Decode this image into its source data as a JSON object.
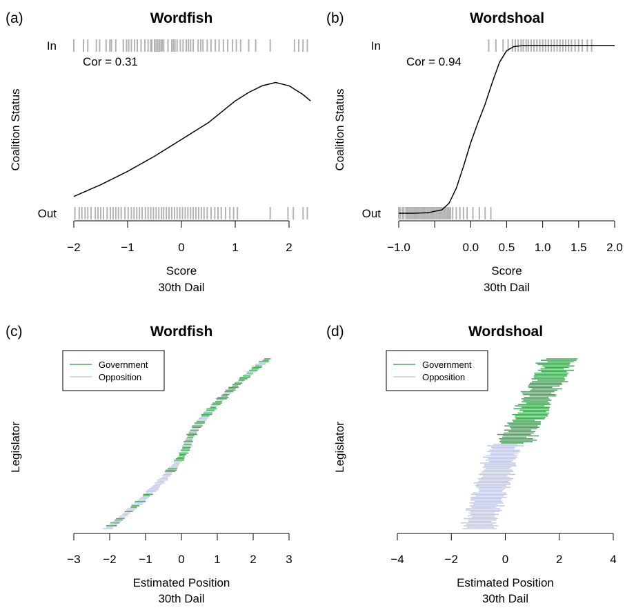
{
  "chart_data": [
    {
      "panel": "(a)",
      "type": "scatter",
      "title": "Wordfish",
      "xlabel": "Score",
      "xlabel_sub": "30th Dail",
      "ylabel": "Coalition Status",
      "xlim": [
        -2.1,
        2.4
      ],
      "xticks": [
        -2,
        -1,
        0,
        1,
        2
      ],
      "xtick_labels": [
        "−2",
        "−1",
        "0",
        "1",
        "2"
      ],
      "y_categories": [
        "Out",
        "In"
      ],
      "annotation": "Cor = 0.31",
      "curve": {
        "x": [
          -2.0,
          -1.5,
          -1.0,
          -0.5,
          0.0,
          0.5,
          1.0,
          1.25,
          1.5,
          1.75,
          2.0,
          2.25,
          2.4
        ],
        "y": [
          0.1,
          0.17,
          0.25,
          0.34,
          0.44,
          0.54,
          0.67,
          0.72,
          0.76,
          0.78,
          0.76,
          0.71,
          0.67
        ]
      },
      "rug_in": [
        -2.0,
        -1.82,
        -1.74,
        -1.58,
        -1.52,
        -1.4,
        -1.33,
        -1.3,
        -1.22,
        -1.08,
        -1.02,
        -0.98,
        -0.93,
        -0.87,
        -0.82,
        -0.75,
        -0.68,
        -0.62,
        -0.57,
        -0.55,
        -0.5,
        -0.47,
        -0.44,
        -0.41,
        -0.38,
        -0.36,
        -0.33,
        -0.25,
        -0.18,
        -0.15,
        -0.12,
        -0.08,
        -0.02,
        0.03,
        0.09,
        0.13,
        0.17,
        0.22,
        0.31,
        0.36,
        0.4,
        0.48,
        0.55,
        0.63,
        0.7,
        0.78,
        0.86,
        0.95,
        1.02,
        1.1,
        1.25,
        1.38,
        1.65,
        2.1,
        2.18,
        2.26,
        2.34
      ],
      "rug_out": [
        -1.98,
        -1.9,
        -1.85,
        -1.79,
        -1.74,
        -1.68,
        -1.6,
        -1.55,
        -1.5,
        -1.45,
        -1.38,
        -1.32,
        -1.27,
        -1.22,
        -1.17,
        -1.12,
        -1.05,
        -0.99,
        -0.93,
        -0.88,
        -0.83,
        -0.78,
        -0.73,
        -0.67,
        -0.62,
        -0.57,
        -0.52,
        -0.47,
        -0.42,
        -0.37,
        -0.33,
        -0.28,
        -0.23,
        -0.18,
        -0.13,
        -0.08,
        -0.03,
        0.02,
        0.07,
        0.12,
        0.17,
        0.22,
        0.27,
        0.32,
        0.37,
        0.42,
        0.48,
        0.55,
        0.62,
        0.68,
        0.74,
        0.82,
        0.9,
        0.97,
        1.04,
        1.65,
        1.98,
        2.08,
        2.26,
        2.34
      ]
    },
    {
      "panel": "(b)",
      "type": "scatter",
      "title": "Wordshoal",
      "xlabel": "Score",
      "xlabel_sub": "30th Dail",
      "ylabel": "Coalition Status",
      "xlim": [
        -1.05,
        2.05
      ],
      "xticks": [
        -1.0,
        -0.5,
        0.0,
        0.5,
        1.0,
        1.5,
        2.0
      ],
      "xtick_labels": [
        "−1.0",
        "",
        "0.0",
        "0.5",
        "1.0",
        "1.5",
        "2.0"
      ],
      "y_categories": [
        "Out",
        "In"
      ],
      "annotation": "Cor = 0.94",
      "curve": {
        "x": [
          -1.0,
          -0.8,
          -0.6,
          -0.4,
          -0.3,
          -0.2,
          -0.1,
          0.0,
          0.1,
          0.2,
          0.3,
          0.4,
          0.5,
          0.6,
          0.7,
          0.8,
          1.0,
          1.5,
          2.0
        ],
        "y": [
          0.0,
          0.0,
          0.003,
          0.02,
          0.06,
          0.15,
          0.28,
          0.42,
          0.54,
          0.65,
          0.78,
          0.9,
          0.97,
          0.994,
          0.999,
          1.0,
          1.0,
          1.0,
          1.0
        ]
      },
      "rug_in": [
        0.25,
        0.35,
        0.45,
        0.52,
        0.58,
        0.62,
        0.66,
        0.7,
        0.73,
        0.77,
        0.8,
        0.84,
        0.88,
        0.92,
        0.96,
        1.0,
        1.04,
        1.08,
        1.12,
        1.16,
        1.2,
        1.24,
        1.28,
        1.32,
        1.36,
        1.4,
        1.45,
        1.5,
        1.55,
        1.62,
        1.68
      ],
      "rug_out": [
        -1.0,
        -0.98,
        -0.95,
        -0.93,
        -0.9,
        -0.88,
        -0.86,
        -0.84,
        -0.82,
        -0.8,
        -0.78,
        -0.76,
        -0.74,
        -0.72,
        -0.7,
        -0.68,
        -0.66,
        -0.64,
        -0.62,
        -0.6,
        -0.58,
        -0.56,
        -0.54,
        -0.52,
        -0.5,
        -0.48,
        -0.46,
        -0.44,
        -0.42,
        -0.4,
        -0.38,
        -0.36,
        -0.34,
        -0.32,
        -0.3,
        -0.28,
        -0.25,
        -0.2,
        -0.15,
        -0.1,
        -0.05,
        0.03,
        0.12,
        0.2,
        0.28
      ]
    },
    {
      "panel": "(c)",
      "type": "interval",
      "title": "Wordfish",
      "xlabel": "Estimated Position",
      "xlabel_sub": "30th Dail",
      "ylabel": "Legislator",
      "xlim": [
        -3,
        3
      ],
      "xticks": [
        -3,
        -2,
        -1,
        0,
        1,
        2,
        3
      ],
      "xtick_labels": [
        "−3",
        "−2",
        "−1",
        "0",
        "1",
        "2",
        "3"
      ],
      "legend": [
        {
          "label": "Government",
          "color": "#4aaa5c"
        },
        {
          "label": "Opposition",
          "color": "#c5cbe6"
        }
      ],
      "rows": 120,
      "center_range": [
        -2.05,
        2.4
      ],
      "half_width": 0.12
    },
    {
      "panel": "(d)",
      "type": "interval",
      "title": "Wordshoal",
      "xlabel": "Estimated Position",
      "xlabel_sub": "30th Dail",
      "ylabel": "Legislator",
      "xlim": [
        -4,
        4
      ],
      "xticks": [
        -4,
        -2,
        0,
        2,
        4
      ],
      "xtick_labels": [
        "−4",
        "−2",
        "0",
        "2",
        "4"
      ],
      "legend": [
        {
          "label": "Government",
          "color": "#4aaa5c"
        },
        {
          "label": "Opposition",
          "color": "#c5cbe6"
        }
      ],
      "rows": 120,
      "government_center_range": [
        0.3,
        2.0
      ],
      "opposition_center_range": [
        -1.0,
        0.0
      ],
      "half_width": 0.55
    }
  ],
  "colors": {
    "government": "#4aaa5c",
    "opposition": "#c5cbe6",
    "rug": "#b3b3b3",
    "curve": "#000000"
  }
}
